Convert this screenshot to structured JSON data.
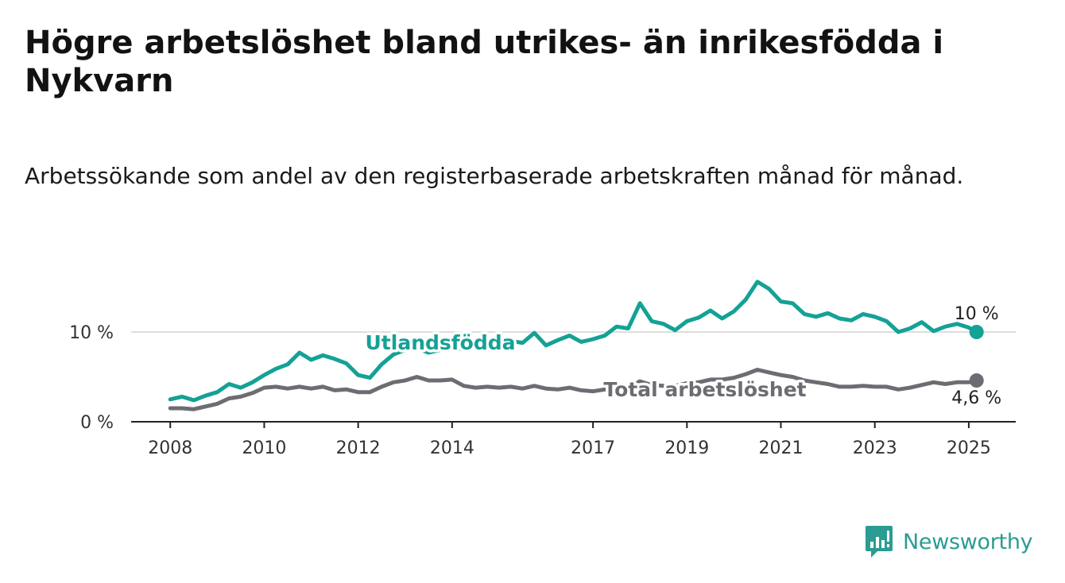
{
  "title": "Högre arbetslöshet bland utrikes- än inrikesfödda i Nykvarn",
  "subtitle": "Arbetssökande som andel av den registerbaserade arbetskraften månad för månad.",
  "logo": {
    "name": "Newsworthy",
    "icon": "newsworthy-bar-chart-icon"
  },
  "chart_data": {
    "type": "line",
    "x_ticks": [
      "2008",
      "2010",
      "2012",
      "2014",
      "2017",
      "2019",
      "2021",
      "2023",
      "2025"
    ],
    "y_ticks": [
      "0 %",
      "10 %"
    ],
    "ylim": [
      0,
      16
    ],
    "xlim": [
      "2007-03",
      "2026-01"
    ],
    "grid": true,
    "colors": {
      "utlandsfodda": "#14a196",
      "total": "#6d6c72"
    },
    "series": [
      {
        "name": "Utlandsfödda",
        "key": "utlandsfodda",
        "end_label": "10 %",
        "points": [
          [
            "2008-01",
            2.5
          ],
          [
            "2008-04",
            2.8
          ],
          [
            "2008-07",
            2.4
          ],
          [
            "2008-10",
            2.9
          ],
          [
            "2009-01",
            3.3
          ],
          [
            "2009-04",
            4.2
          ],
          [
            "2009-07",
            3.8
          ],
          [
            "2009-10",
            4.4
          ],
          [
            "2010-01",
            5.2
          ],
          [
            "2010-04",
            5.9
          ],
          [
            "2010-07",
            6.4
          ],
          [
            "2010-10",
            7.7
          ],
          [
            "2011-01",
            6.9
          ],
          [
            "2011-04",
            7.4
          ],
          [
            "2011-07",
            7.0
          ],
          [
            "2011-10",
            6.5
          ],
          [
            "2012-01",
            5.2
          ],
          [
            "2012-04",
            4.9
          ],
          [
            "2012-07",
            6.4
          ],
          [
            "2012-10",
            7.5
          ],
          [
            "2013-01",
            8.0
          ],
          [
            "2013-04",
            8.2
          ],
          [
            "2013-07",
            7.7
          ],
          [
            "2013-10",
            8.0
          ],
          [
            "2014-01",
            8.6
          ],
          [
            "2014-04",
            8.0
          ],
          [
            "2014-07",
            8.3
          ],
          [
            "2014-10",
            8.7
          ],
          [
            "2015-01",
            8.6
          ],
          [
            "2015-04",
            9.0
          ],
          [
            "2015-07",
            8.8
          ],
          [
            "2015-10",
            9.9
          ],
          [
            "2016-01",
            8.5
          ],
          [
            "2016-04",
            9.1
          ],
          [
            "2016-07",
            9.6
          ],
          [
            "2016-10",
            8.9
          ],
          [
            "2017-01",
            9.2
          ],
          [
            "2017-04",
            9.6
          ],
          [
            "2017-07",
            10.6
          ],
          [
            "2017-10",
            10.4
          ],
          [
            "2018-01",
            13.2
          ],
          [
            "2018-04",
            11.2
          ],
          [
            "2018-07",
            10.9
          ],
          [
            "2018-10",
            10.2
          ],
          [
            "2019-01",
            11.2
          ],
          [
            "2019-04",
            11.6
          ],
          [
            "2019-07",
            12.4
          ],
          [
            "2019-10",
            11.5
          ],
          [
            "2020-01",
            12.3
          ],
          [
            "2020-04",
            13.6
          ],
          [
            "2020-07",
            15.6
          ],
          [
            "2020-10",
            14.8
          ],
          [
            "2021-01",
            13.4
          ],
          [
            "2021-04",
            13.2
          ],
          [
            "2021-07",
            12.0
          ],
          [
            "2021-10",
            11.7
          ],
          [
            "2022-01",
            12.1
          ],
          [
            "2022-04",
            11.5
          ],
          [
            "2022-07",
            11.3
          ],
          [
            "2022-10",
            12.0
          ],
          [
            "2023-01",
            11.7
          ],
          [
            "2023-04",
            11.2
          ],
          [
            "2023-07",
            10.0
          ],
          [
            "2023-10",
            10.4
          ],
          [
            "2024-01",
            11.1
          ],
          [
            "2024-04",
            10.1
          ],
          [
            "2024-07",
            10.6
          ],
          [
            "2024-10",
            10.9
          ],
          [
            "2025-01",
            10.5
          ],
          [
            "2025-03",
            10.0
          ]
        ]
      },
      {
        "name": "Total arbetslöshet",
        "key": "total",
        "end_label": "4,6 %",
        "points": [
          [
            "2008-01",
            1.5
          ],
          [
            "2008-04",
            1.5
          ],
          [
            "2008-07",
            1.4
          ],
          [
            "2008-10",
            1.7
          ],
          [
            "2009-01",
            2.0
          ],
          [
            "2009-04",
            2.6
          ],
          [
            "2009-07",
            2.8
          ],
          [
            "2009-10",
            3.2
          ],
          [
            "2010-01",
            3.8
          ],
          [
            "2010-04",
            3.9
          ],
          [
            "2010-07",
            3.7
          ],
          [
            "2010-10",
            3.9
          ],
          [
            "2011-01",
            3.7
          ],
          [
            "2011-04",
            3.9
          ],
          [
            "2011-07",
            3.5
          ],
          [
            "2011-10",
            3.6
          ],
          [
            "2012-01",
            3.3
          ],
          [
            "2012-04",
            3.3
          ],
          [
            "2012-07",
            3.9
          ],
          [
            "2012-10",
            4.4
          ],
          [
            "2013-01",
            4.6
          ],
          [
            "2013-04",
            5.0
          ],
          [
            "2013-07",
            4.6
          ],
          [
            "2013-10",
            4.6
          ],
          [
            "2014-01",
            4.7
          ],
          [
            "2014-04",
            4.0
          ],
          [
            "2014-07",
            3.8
          ],
          [
            "2014-10",
            3.9
          ],
          [
            "2015-01",
            3.8
          ],
          [
            "2015-04",
            3.9
          ],
          [
            "2015-07",
            3.7
          ],
          [
            "2015-10",
            4.0
          ],
          [
            "2016-01",
            3.7
          ],
          [
            "2016-04",
            3.6
          ],
          [
            "2016-07",
            3.8
          ],
          [
            "2016-10",
            3.5
          ],
          [
            "2017-01",
            3.4
          ],
          [
            "2017-04",
            3.6
          ],
          [
            "2017-07",
            3.9
          ],
          [
            "2017-10",
            3.8
          ],
          [
            "2018-01",
            4.5
          ],
          [
            "2018-04",
            4.1
          ],
          [
            "2018-07",
            4.0
          ],
          [
            "2018-10",
            4.0
          ],
          [
            "2019-01",
            4.3
          ],
          [
            "2019-04",
            4.4
          ],
          [
            "2019-07",
            4.7
          ],
          [
            "2019-10",
            4.7
          ],
          [
            "2020-01",
            4.9
          ],
          [
            "2020-04",
            5.3
          ],
          [
            "2020-07",
            5.8
          ],
          [
            "2020-10",
            5.5
          ],
          [
            "2021-01",
            5.2
          ],
          [
            "2021-04",
            5.0
          ],
          [
            "2021-07",
            4.6
          ],
          [
            "2021-10",
            4.4
          ],
          [
            "2022-01",
            4.2
          ],
          [
            "2022-04",
            3.9
          ],
          [
            "2022-07",
            3.9
          ],
          [
            "2022-10",
            4.0
          ],
          [
            "2023-01",
            3.9
          ],
          [
            "2023-04",
            3.9
          ],
          [
            "2023-07",
            3.6
          ],
          [
            "2023-10",
            3.8
          ],
          [
            "2024-01",
            4.1
          ],
          [
            "2024-04",
            4.4
          ],
          [
            "2024-07",
            4.2
          ],
          [
            "2024-10",
            4.4
          ],
          [
            "2025-01",
            4.4
          ],
          [
            "2025-03",
            4.6
          ]
        ]
      }
    ]
  }
}
